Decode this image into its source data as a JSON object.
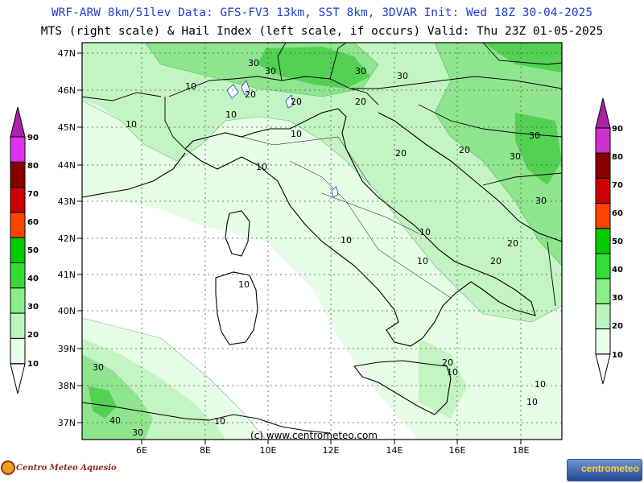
{
  "header": {
    "line1": "WRF-ARW 8km/51lev  Data: GFS-FV3 13km, SST 8km, 3DVAR   Init: Wed 18Z 30-04-2025",
    "line2": "MTS (right scale) & Hail Index (left scale, if occurs) Valid: Thu 23Z 01-05-2025"
  },
  "lat_labels": [
    "47N",
    "46N",
    "45N",
    "44N",
    "43N",
    "42N",
    "41N",
    "40N",
    "39N",
    "38N",
    "37N"
  ],
  "lon_labels": [
    "6E",
    "8E",
    "10E",
    "12E",
    "14E",
    "16E",
    "18E"
  ],
  "copyright": "(c) www.centrometeo.com",
  "contour_labels": [
    "30",
    "30",
    "30",
    "30",
    "10",
    "20",
    "10",
    "10",
    "20",
    "20",
    "10",
    "20",
    "30",
    "10",
    "30",
    "10",
    "30",
    "10",
    "20",
    "20",
    "10",
    "20",
    "10",
    "30",
    "40",
    "30",
    "10",
    "20",
    "10",
    "10",
    "10"
  ],
  "colorbars": {
    "left": {
      "labels": [
        "90",
        "80",
        "70",
        "60",
        "50",
        "40",
        "30",
        "20",
        "10"
      ],
      "colors": [
        "#dd33ee",
        "#880000",
        "#cc0000",
        "#ff4400",
        "#00cc00",
        "#33dd33",
        "#88ee88",
        "#bbf5bb",
        "#e8ffe8"
      ]
    },
    "right": {
      "labels": [
        "90",
        "80",
        "70",
        "60",
        "50",
        "40",
        "30",
        "20",
        "10"
      ],
      "colors": [
        "#cc33cc",
        "#880000",
        "#cc0000",
        "#ff4400",
        "#00cc00",
        "#33dd33",
        "#88ee88",
        "#bbf5bb",
        "#e8ffe8"
      ]
    }
  },
  "logos": {
    "left": "Centro Meteo Aquesio",
    "right_part1": "centro",
    "right_part2": "meteo"
  }
}
